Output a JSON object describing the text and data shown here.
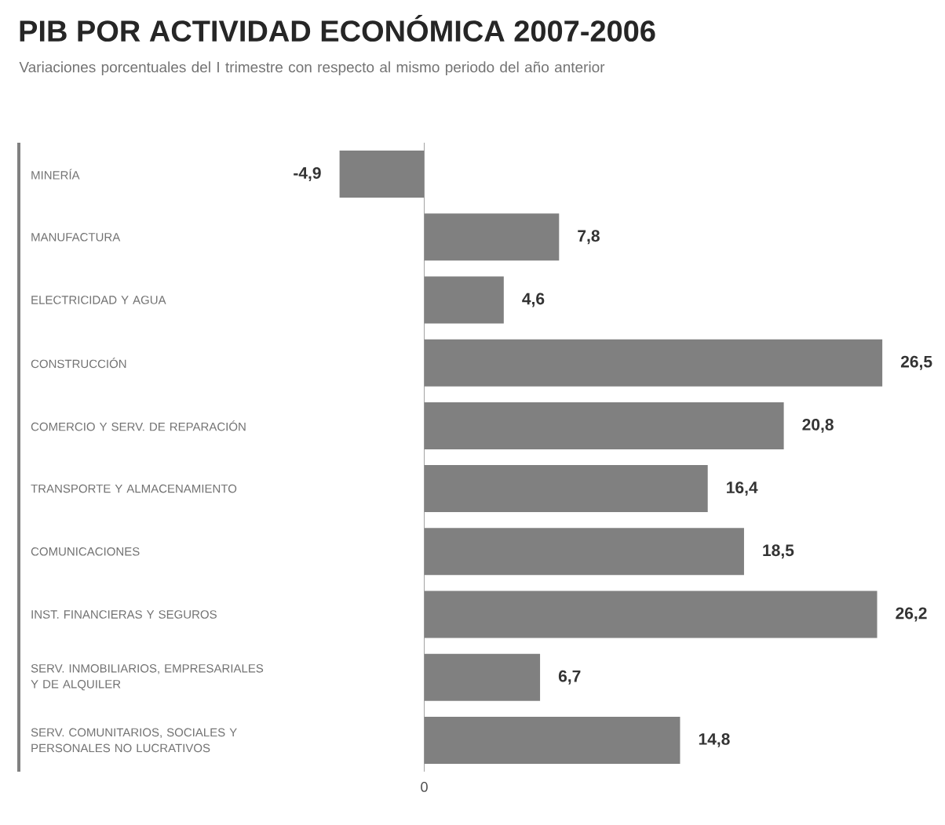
{
  "chart_data": {
    "type": "bar",
    "orientation": "horizontal",
    "title": "PIB POR ACTIVIDAD ECONÓMICA 2007-2006",
    "subtitle": "Variaciones porcentuales del I trimestre con respecto al mismo periodo del año anterior",
    "categories": [
      "MINERÍA",
      "MANUFACTURA",
      "ELECTRICIDAD Y AGUA",
      "CONSTRUCCIÓN",
      "COMERCIO Y SERV. DE REPARACIÓN",
      "TRANSPORTE Y ALMACENAMIENTO",
      "COMUNICACIONES",
      "INST. FINANCIERAS Y SEGUROS",
      "SERV. INMOBILIARIOS, EMPRESARIALES Y DE ALQUILER",
      "SERV. COMUNITARIOS, SOCIALES Y PERSONALES NO LUCRATIVOS"
    ],
    "values": [
      -4.9,
      7.8,
      4.6,
      26.5,
      20.8,
      16.4,
      18.5,
      26.2,
      6.7,
      14.8
    ],
    "value_labels": [
      "-4,9",
      "7,8",
      "4,6",
      "26,5",
      "20,8",
      "16,4",
      "18,5",
      "26,2",
      "6,7",
      "14,8"
    ],
    "color": "#808080",
    "ref_lines": [
      {
        "axis": "x",
        "value": 0,
        "label": "0"
      }
    ]
  }
}
